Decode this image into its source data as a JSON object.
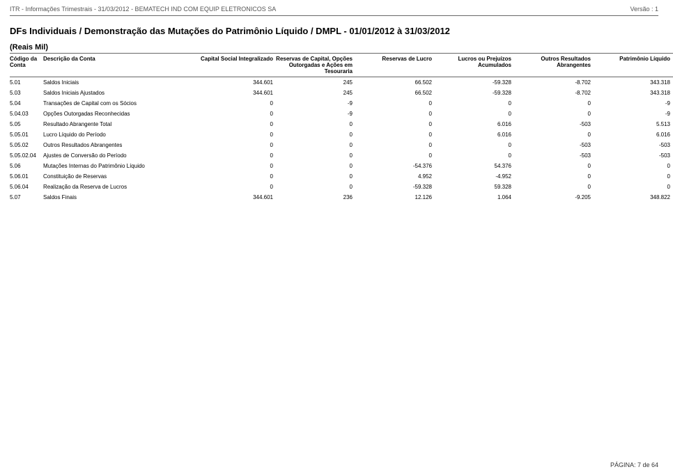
{
  "header": {
    "left": "ITR - Informações Trimestrais - 31/03/2012 - BEMATECH IND COM EQUIP ELETRONICOS SA",
    "right": "Versão : 1"
  },
  "title": "DFs Individuais / Demonstração das Mutações do Patrimônio Líquido / DMPL - 01/01/2012 à 31/03/2012",
  "subtitle": "(Reais Mil)",
  "columns": [
    "Código da Conta",
    "Descrição da Conta",
    "Capital Social Integralizado",
    "Reservas de Capital, Opções Outorgadas e Ações em Tesouraria",
    "Reservas de Lucro",
    "Lucros ou Prejuízos Acumulados",
    "Outros Resultados Abrangentes",
    "Patrimônio Líquido"
  ],
  "rows": [
    {
      "code": "5.01",
      "desc": "Saldos Iniciais",
      "v": [
        "344.601",
        "245",
        "66.502",
        "-59.328",
        "-8.702",
        "343.318"
      ]
    },
    {
      "code": "5.03",
      "desc": "Saldos Iniciais Ajustados",
      "v": [
        "344.601",
        "245",
        "66.502",
        "-59.328",
        "-8.702",
        "343.318"
      ]
    },
    {
      "code": "5.04",
      "desc": "Transações de Capital com os Sócios",
      "v": [
        "0",
        "-9",
        "0",
        "0",
        "0",
        "-9"
      ]
    },
    {
      "code": "5.04.03",
      "desc": "Opções Outorgadas Reconhecidas",
      "v": [
        "0",
        "-9",
        "0",
        "0",
        "0",
        "-9"
      ]
    },
    {
      "code": "5.05",
      "desc": "Resultado Abrangente Total",
      "v": [
        "0",
        "0",
        "0",
        "6.016",
        "-503",
        "5.513"
      ]
    },
    {
      "code": "5.05.01",
      "desc": "Lucro Líquido do Período",
      "v": [
        "0",
        "0",
        "0",
        "6.016",
        "0",
        "6.016"
      ]
    },
    {
      "code": "5.05.02",
      "desc": "Outros Resultados Abrangentes",
      "v": [
        "0",
        "0",
        "0",
        "0",
        "-503",
        "-503"
      ]
    },
    {
      "code": "5.05.02.04",
      "desc": "Ajustes de Conversão do Período",
      "v": [
        "0",
        "0",
        "0",
        "0",
        "-503",
        "-503"
      ]
    },
    {
      "code": "5.06",
      "desc": "Mutações Internas do Patrimônio Líquido",
      "v": [
        "0",
        "0",
        "-54.376",
        "54.376",
        "0",
        "0"
      ]
    },
    {
      "code": "5.06.01",
      "desc": "Constituição de Reservas",
      "v": [
        "0",
        "0",
        "4.952",
        "-4.952",
        "0",
        "0"
      ]
    },
    {
      "code": "5.06.04",
      "desc": "Realização da Reserva de Lucros",
      "v": [
        "0",
        "0",
        "-59.328",
        "59.328",
        "0",
        "0"
      ]
    },
    {
      "code": "5.07",
      "desc": "Saldos Finais",
      "v": [
        "344.601",
        "236",
        "12.126",
        "1.064",
        "-9.205",
        "348.822"
      ]
    }
  ],
  "footer": "PÁGINA: 7 de 64"
}
